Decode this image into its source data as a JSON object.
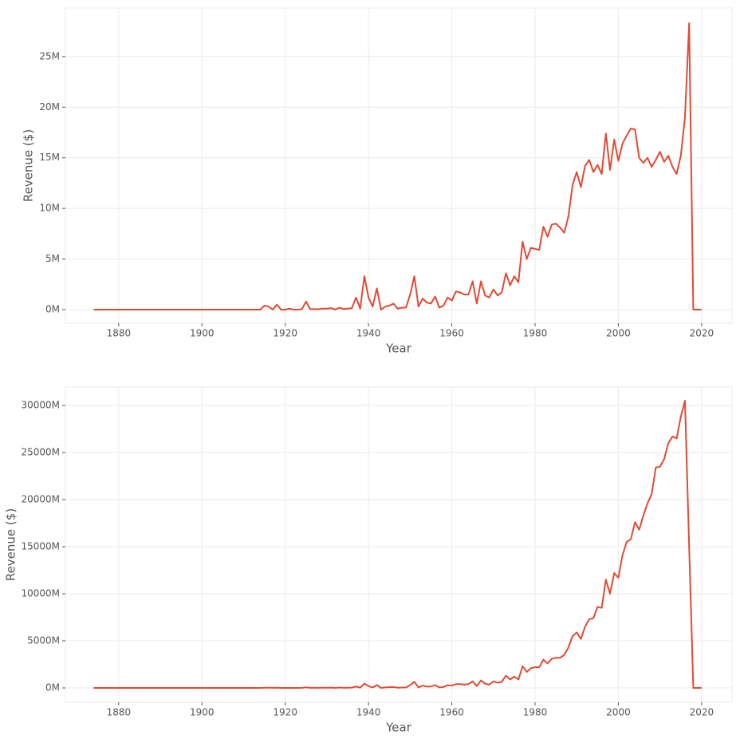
{
  "chart_data": [
    {
      "type": "line",
      "x_label": "Year",
      "y_label": "Revenue ($)",
      "x": [
        1874,
        1914,
        1915,
        1916,
        1917,
        1918,
        1919,
        1920,
        1921,
        1922,
        1923,
        1924,
        1925,
        1926,
        1927,
        1928,
        1929,
        1930,
        1931,
        1932,
        1933,
        1934,
        1935,
        1936,
        1937,
        1938,
        1939,
        1940,
        1941,
        1942,
        1943,
        1944,
        1945,
        1946,
        1947,
        1948,
        1949,
        1950,
        1951,
        1952,
        1953,
        1954,
        1955,
        1956,
        1957,
        1958,
        1959,
        1960,
        1961,
        1962,
        1963,
        1964,
        1965,
        1966,
        1967,
        1968,
        1969,
        1970,
        1971,
        1972,
        1973,
        1974,
        1975,
        1976,
        1977,
        1978,
        1979,
        1980,
        1981,
        1982,
        1983,
        1984,
        1985,
        1986,
        1987,
        1988,
        1989,
        1990,
        1991,
        1992,
        1993,
        1994,
        1995,
        1996,
        1997,
        1998,
        1999,
        2000,
        2001,
        2002,
        2003,
        2004,
        2005,
        2006,
        2007,
        2008,
        2009,
        2010,
        2011,
        2012,
        2013,
        2014,
        2015,
        2016,
        2017,
        2018,
        2019,
        2020
      ],
      "series": [
        {
          "color": "#e24a33",
          "values": [
            0,
            0,
            400000.0,
            300000.0,
            0,
            500000.0,
            0,
            0,
            100000.0,
            0,
            0,
            50000.0,
            800000.0,
            50000.0,
            50000.0,
            50000.0,
            100000.0,
            100000.0,
            150000.0,
            0,
            200000.0,
            50000.0,
            100000.0,
            150000.0,
            1200000.0,
            100000.0,
            3300000.0,
            1200000.0,
            300000.0,
            2100000.0,
            0,
            300000.0,
            400000.0,
            600000.0,
            100000.0,
            200000.0,
            200000.0,
            1500000.0,
            3300000.0,
            300000.0,
            1100000.0,
            700000.0,
            600000.0,
            1300000.0,
            200000.0,
            400000.0,
            1200000.0,
            900000.0,
            1800000.0,
            1700000.0,
            1500000.0,
            1500000.0,
            2800000.0,
            600000.0,
            2800000.0,
            1400000.0,
            1200000.0,
            2000000.0,
            1400000.0,
            1700000.0,
            3600000.0,
            2400000.0,
            3300000.0,
            2700000.0,
            6700000.0,
            5000000.0,
            6100000.0,
            6000000.0,
            5900000.0,
            8200000.0,
            7200000.0,
            8400000.0,
            8500000.0,
            8100000.0,
            7600000.0,
            9200000.0,
            12300000.0,
            13600000.0,
            12100000.0,
            14200000.0,
            14800000.0,
            13600000.0,
            14300000.0,
            13400000.0,
            17400000.0,
            13800000.0,
            16800000.0,
            14700000.0,
            16400000.0,
            17200000.0,
            17900000.0,
            17800000.0,
            15000000.0,
            14500000.0,
            15000000.0,
            14100000.0,
            14800000.0,
            15600000.0,
            14600000.0,
            15200000.0,
            14100000.0,
            13400000.0,
            15200000.0,
            19000000.0,
            28300000.0,
            0,
            0,
            0
          ]
        }
      ],
      "xlim": [
        1867.2,
        2027.3
      ],
      "xticks": [
        1880,
        1900,
        1920,
        1940,
        1960,
        1980,
        2000,
        2020
      ],
      "ylim": [
        -1340000,
        29800000
      ],
      "yticks": [
        {
          "value": 0,
          "label": "0M"
        },
        {
          "value": 5000000,
          "label": "5M"
        },
        {
          "value": 10000000,
          "label": "10M"
        },
        {
          "value": 15000000,
          "label": "15M"
        },
        {
          "value": 20000000,
          "label": "20M"
        },
        {
          "value": 25000000,
          "label": "25M"
        }
      ],
      "grid": true
    },
    {
      "type": "line",
      "x_label": "Year",
      "y_label": "Revenue ($)",
      "x": [
        1874,
        1914,
        1915,
        1916,
        1917,
        1918,
        1919,
        1920,
        1921,
        1922,
        1923,
        1924,
        1925,
        1926,
        1927,
        1928,
        1929,
        1930,
        1931,
        1932,
        1933,
        1934,
        1935,
        1936,
        1937,
        1938,
        1939,
        1940,
        1941,
        1942,
        1943,
        1944,
        1945,
        1946,
        1947,
        1948,
        1949,
        1950,
        1951,
        1952,
        1953,
        1954,
        1955,
        1956,
        1957,
        1958,
        1959,
        1960,
        1961,
        1962,
        1963,
        1964,
        1965,
        1966,
        1967,
        1968,
        1969,
        1970,
        1971,
        1972,
        1973,
        1974,
        1975,
        1976,
        1977,
        1978,
        1979,
        1980,
        1981,
        1982,
        1983,
        1984,
        1985,
        1986,
        1987,
        1988,
        1989,
        1990,
        1991,
        1992,
        1993,
        1994,
        1995,
        1996,
        1997,
        1998,
        1999,
        2000,
        2001,
        2002,
        2003,
        2004,
        2005,
        2006,
        2007,
        2008,
        2009,
        2010,
        2011,
        2012,
        2013,
        2014,
        2015,
        2016,
        2017,
        2018,
        2019,
        2020
      ],
      "series": [
        {
          "color": "#e24a33",
          "values": [
            0,
            0,
            20000000.0,
            20000000.0,
            10000000.0,
            20000000.0,
            0,
            0,
            10000000.0,
            0,
            0,
            10000000.0,
            60000000.0,
            10000000.0,
            10000000.0,
            10000000.0,
            20000000.0,
            20000000.0,
            30000000.0,
            0,
            40000000.0,
            10000000.0,
            20000000.0,
            30000000.0,
            150000000.0,
            30000000.0,
            450000000.0,
            200000000.0,
            50000000.0,
            300000000.0,
            0,
            50000000.0,
            80000000.0,
            100000000.0,
            20000000.0,
            40000000.0,
            40000000.0,
            300000000.0,
            650000000.0,
            50000000.0,
            250000000.0,
            150000000.0,
            150000000.0,
            300000000.0,
            50000000.0,
            100000000.0,
            300000000.0,
            250000000.0,
            400000000.0,
            400000000.0,
            350000000.0,
            400000000.0,
            700000000.0,
            200000000.0,
            800000000.0,
            450000000.0,
            350000000.0,
            700000000.0,
            550000000.0,
            650000000.0,
            1300000000.0,
            900000000.0,
            1200000000.0,
            900000000.0,
            2300000000.0,
            1700000000.0,
            2100000000.0,
            2200000000.0,
            2200000000.0,
            3000000000.0,
            2600000000.0,
            3100000000.0,
            3200000000.0,
            3200000000.0,
            3500000000.0,
            4300000000.0,
            5500000000.0,
            5900000000.0,
            5200000000.0,
            6500000000.0,
            7300000000.0,
            7400000000.0,
            8600000000.0,
            8500000000.0,
            11500000000.0,
            10000000000.0,
            12200000000.0,
            11700000000.0,
            14100000000.0,
            15500000000.0,
            15800000000.0,
            17600000000.0,
            16800000000.0,
            18300000000.0,
            19600000000.0,
            20600000000.0,
            23400000000.0,
            23500000000.0,
            24300000000.0,
            26000000000.0,
            26700000000.0,
            26500000000.0,
            28800000000.0,
            30500000000.0,
            15000000000.0,
            0,
            0,
            0
          ]
        }
      ],
      "xlim": [
        1867.2,
        2027.3
      ],
      "xticks": [
        1880,
        1900,
        1920,
        1940,
        1960,
        1980,
        2000,
        2020
      ],
      "ylim": [
        -1525000000,
        31950000000
      ],
      "yticks": [
        {
          "value": 0,
          "label": "0M"
        },
        {
          "value": 5000000000,
          "label": "5000M"
        },
        {
          "value": 10000000000,
          "label": "10000M"
        },
        {
          "value": 15000000000,
          "label": "15000M"
        },
        {
          "value": 20000000000,
          "label": "20000M"
        },
        {
          "value": 25000000000,
          "label": "25000M"
        },
        {
          "value": 30000000000,
          "label": "30000M"
        }
      ],
      "grid": true
    }
  ]
}
